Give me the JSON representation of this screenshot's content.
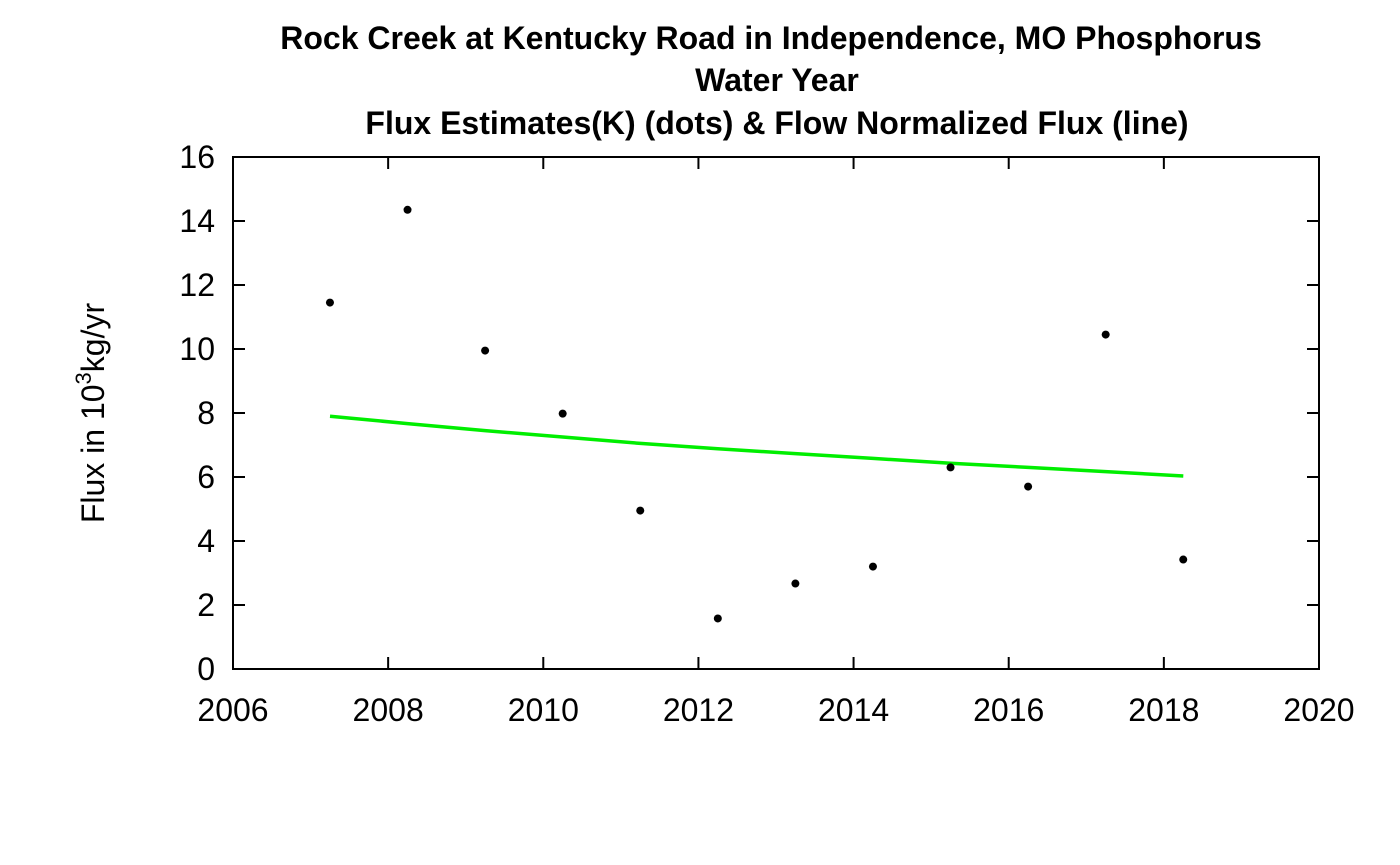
{
  "chart_data": {
    "type": "scatter",
    "title_lines": [
      "Rock Creek at Kentucky Road in Independence, MO   Phosphorus",
      "Water Year",
      "Flux Estimates(K) (dots) & Flow Normalized Flux (line)"
    ],
    "ylabel": {
      "prefix": "Flux in 10",
      "superscript": "3",
      "suffix": "kg/yr"
    },
    "xlabel": "",
    "xlim": [
      2006,
      2020
    ],
    "ylim": [
      0,
      16
    ],
    "xticks": [
      2006,
      2008,
      2010,
      2012,
      2014,
      2016,
      2018,
      2020
    ],
    "yticks": [
      0,
      2,
      4,
      6,
      8,
      10,
      12,
      14,
      16
    ],
    "grid": false,
    "series": [
      {
        "kind": "points",
        "color": "#000000",
        "x": [
          2007.25,
          2008.25,
          2009.25,
          2010.25,
          2011.25,
          2012.25,
          2013.25,
          2014.25,
          2015.25,
          2016.25,
          2017.25,
          2018.25
        ],
        "y": [
          11.45,
          14.35,
          9.95,
          7.98,
          4.95,
          1.58,
          2.67,
          3.2,
          6.3,
          5.7,
          10.45,
          3.42
        ]
      },
      {
        "kind": "line",
        "color": "#00ee00",
        "x": [
          2007.25,
          2008.25,
          2009.25,
          2010.25,
          2011.25,
          2012.25,
          2013.25,
          2014.25,
          2015.25,
          2016.25,
          2017.25,
          2018.25
        ],
        "y": [
          7.9,
          7.67,
          7.45,
          7.25,
          7.05,
          6.88,
          6.73,
          6.58,
          6.43,
          6.3,
          6.17,
          6.03
        ]
      }
    ]
  }
}
